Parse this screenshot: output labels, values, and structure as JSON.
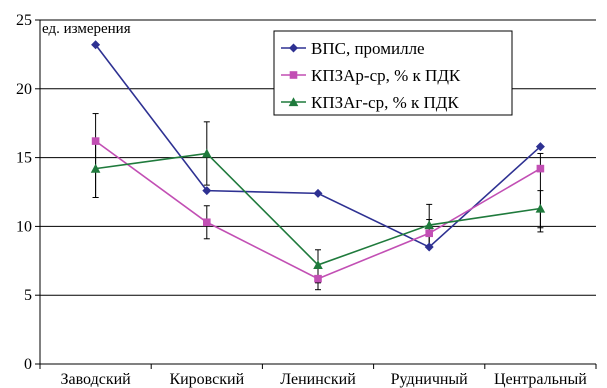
{
  "chart_data": {
    "type": "line",
    "ylabel": "ед. измерения",
    "ylim": [
      0,
      25
    ],
    "yticks": [
      0,
      5,
      10,
      15,
      20,
      25
    ],
    "grid": true,
    "legend_position": "top-right",
    "categories": [
      "Заводский",
      "Кировский",
      "Ленинский",
      "Рудничный",
      "Центральный"
    ],
    "series": [
      {
        "name": "ВПС, промилле",
        "color": "#2e3192",
        "marker": "diamond",
        "values": [
          23.2,
          12.6,
          12.4,
          8.5,
          15.8
        ]
      },
      {
        "name": "КПЗАр-ср, % к ПДК",
        "color": "#c24fb4",
        "marker": "square",
        "values": [
          16.2,
          10.3,
          6.2,
          9.5,
          14.2
        ],
        "error_low": [
          12.1,
          9.1,
          5.4,
          8.6,
          9.6
        ],
        "error_high": [
          18.2,
          11.5,
          7.0,
          10.5,
          15.3
        ]
      },
      {
        "name": "КПЗАг-ср, % к ПДК",
        "color": "#1f7a3c",
        "marker": "triangle",
        "values": [
          14.2,
          15.3,
          7.2,
          10.1,
          11.3
        ],
        "error_low": [
          12.1,
          13.0,
          5.9,
          8.6,
          9.9
        ],
        "error_high": [
          16.3,
          17.6,
          8.3,
          11.6,
          12.6
        ]
      }
    ]
  }
}
